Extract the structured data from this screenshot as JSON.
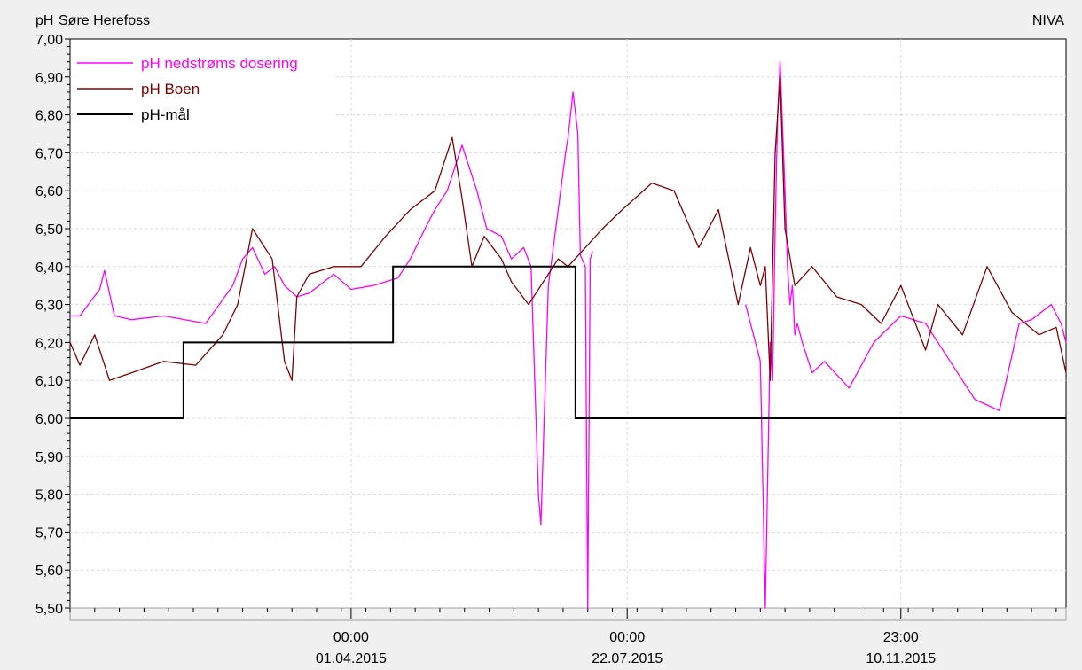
{
  "header": {
    "unit_label": "pH",
    "station_name": "Søre Herefoss",
    "brand": "NIVA"
  },
  "chart_data": {
    "type": "line",
    "title": "Søre Herefoss",
    "ylabel": "pH",
    "ylim": [
      5.5,
      7.0
    ],
    "y_ticks": [
      "7,00",
      "6,90",
      "6,80",
      "6,70",
      "6,60",
      "6,50",
      "6,40",
      "6,30",
      "6,20",
      "6,10",
      "6,00",
      "5,90",
      "5,80",
      "5,70",
      "5,60",
      "5,50"
    ],
    "y_tick_values": [
      7.0,
      6.9,
      6.8,
      6.7,
      6.6,
      6.5,
      6.4,
      6.3,
      6.2,
      6.1,
      6.0,
      5.9,
      5.8,
      5.7,
      5.6,
      5.5
    ],
    "xlim": [
      "2014-12-08",
      "2016-01-16"
    ],
    "x_ticks": [
      {
        "date": "2015-04-01",
        "time": "00:00",
        "label": "01.04.2015"
      },
      {
        "date": "2015-07-22",
        "time": "00:00",
        "label": "22.07.2015"
      },
      {
        "date": "2015-11-10",
        "time": "23:00",
        "label": "10.11.2015"
      }
    ],
    "grid": true,
    "legend_position": "top-left",
    "colors": {
      "magenta": "#ff00ff",
      "maroon": "#800000",
      "black": "#000000",
      "grid": "#d8d8d8"
    },
    "series": [
      {
        "name": "pH nedstrøms dosering",
        "color": "#ff00ff",
        "x": [
          "2014-12-08",
          "2014-12-12",
          "2014-12-20",
          "2014-12-22",
          "2014-12-26",
          "2015-01-02",
          "2015-01-15",
          "2015-02-01",
          "2015-02-12",
          "2015-02-16",
          "2015-02-20",
          "2015-02-25",
          "2015-03-01",
          "2015-03-05",
          "2015-03-10",
          "2015-03-15",
          "2015-03-25",
          "2015-04-01",
          "2015-04-10",
          "2015-04-20",
          "2015-04-25",
          "2015-05-01",
          "2015-05-05",
          "2015-05-10",
          "2015-05-16",
          "2015-05-18",
          "2015-05-22",
          "2015-05-26",
          "2015-06-01",
          "2015-06-05",
          "2015-06-10",
          "2015-06-13",
          "2015-06-16",
          "2015-06-17",
          "2015-06-20",
          "2015-06-24",
          "2015-06-27",
          "2015-06-28",
          "2015-06-30",
          "2015-07-02",
          "2015-07-03",
          "2015-07-05",
          "2015-07-06",
          "2015-07-07",
          "2015-07-08"
        ],
        "y": [
          6.27,
          6.27,
          6.34,
          6.39,
          6.27,
          6.26,
          6.27,
          6.25,
          6.35,
          6.42,
          6.45,
          6.38,
          6.4,
          6.35,
          6.32,
          6.33,
          6.38,
          6.34,
          6.35,
          6.37,
          6.42,
          6.5,
          6.55,
          6.6,
          6.72,
          6.68,
          6.6,
          6.5,
          6.48,
          6.42,
          6.45,
          6.4,
          5.8,
          5.72,
          6.35,
          6.55,
          6.7,
          6.74,
          6.86,
          6.75,
          6.43,
          6.4,
          5.5,
          6.42,
          6.44
        ],
        "gap_after_index": 44,
        "x2": [
          "2015-09-08",
          "2015-09-12",
          "2015-09-14",
          "2015-09-16",
          "2015-09-18",
          "2015-09-19",
          "2015-09-20",
          "2015-09-21",
          "2015-09-22",
          "2015-09-24",
          "2015-09-25",
          "2015-09-26",
          "2015-09-27",
          "2015-09-28",
          "2015-09-29",
          "2015-10-01",
          "2015-10-05",
          "2015-10-10",
          "2015-10-20",
          "2015-10-30",
          "2015-11-10",
          "2015-11-20",
          "2015-11-30",
          "2015-12-10",
          "2015-12-20",
          "2015-12-28",
          "2016-01-02",
          "2016-01-06",
          "2016-01-10",
          "2016-01-14",
          "2016-01-16"
        ],
        "y2": [
          6.3,
          6.2,
          6.15,
          5.5,
          6.2,
          6.1,
          6.5,
          6.8,
          6.94,
          6.6,
          6.4,
          6.3,
          6.35,
          6.22,
          6.25,
          6.2,
          6.12,
          6.15,
          6.08,
          6.2,
          6.27,
          6.25,
          6.15,
          6.05,
          6.02,
          6.25,
          6.26,
          6.28,
          6.3,
          6.25,
          6.2
        ]
      },
      {
        "name": "pH Boen",
        "color": "#800000",
        "x": [
          "2014-12-08",
          "2014-12-12",
          "2014-12-18",
          "2014-12-24",
          "2015-01-02",
          "2015-01-15",
          "2015-01-28",
          "2015-02-08",
          "2015-02-14",
          "2015-02-20",
          "2015-02-28",
          "2015-03-05",
          "2015-03-08",
          "2015-03-10",
          "2015-03-15",
          "2015-03-25",
          "2015-04-05",
          "2015-04-15",
          "2015-04-25",
          "2015-05-05",
          "2015-05-12",
          "2015-05-16",
          "2015-05-20",
          "2015-05-25",
          "2015-06-01",
          "2015-06-05",
          "2015-06-12",
          "2015-06-17",
          "2015-06-20",
          "2015-06-24",
          "2015-06-28",
          "2015-07-05",
          "2015-07-12",
          "2015-07-20",
          "2015-08-01",
          "2015-08-10",
          "2015-08-20",
          "2015-08-28",
          "2015-09-05",
          "2015-09-10",
          "2015-09-14",
          "2015-09-16",
          "2015-09-18",
          "2015-09-20",
          "2015-09-22",
          "2015-09-24",
          "2015-09-28",
          "2015-10-05",
          "2015-10-15",
          "2015-10-25",
          "2015-11-02",
          "2015-11-10",
          "2015-11-20",
          "2015-11-25",
          "2015-12-05",
          "2015-12-15",
          "2015-12-25",
          "2016-01-05",
          "2016-01-12",
          "2016-01-16"
        ],
        "y": [
          6.2,
          6.14,
          6.22,
          6.1,
          6.12,
          6.15,
          6.14,
          6.22,
          6.3,
          6.5,
          6.42,
          6.15,
          6.1,
          6.32,
          6.38,
          6.4,
          6.4,
          6.48,
          6.55,
          6.6,
          6.74,
          6.58,
          6.4,
          6.48,
          6.42,
          6.36,
          6.3,
          6.35,
          6.38,
          6.42,
          6.4,
          6.45,
          6.5,
          6.55,
          6.62,
          6.6,
          6.45,
          6.55,
          6.3,
          6.45,
          6.35,
          6.4,
          6.1,
          6.7,
          6.9,
          6.5,
          6.35,
          6.4,
          6.32,
          6.3,
          6.25,
          6.35,
          6.18,
          6.3,
          6.22,
          6.4,
          6.28,
          6.22,
          6.24,
          6.12
        ]
      },
      {
        "name": "pH-mål",
        "color": "#000000",
        "step": true,
        "x": [
          "2014-12-08",
          "2015-01-23",
          "2015-04-18",
          "2015-07-01",
          "2016-01-16"
        ],
        "y": [
          6.0,
          6.2,
          6.4,
          6.0,
          6.0
        ]
      }
    ]
  }
}
